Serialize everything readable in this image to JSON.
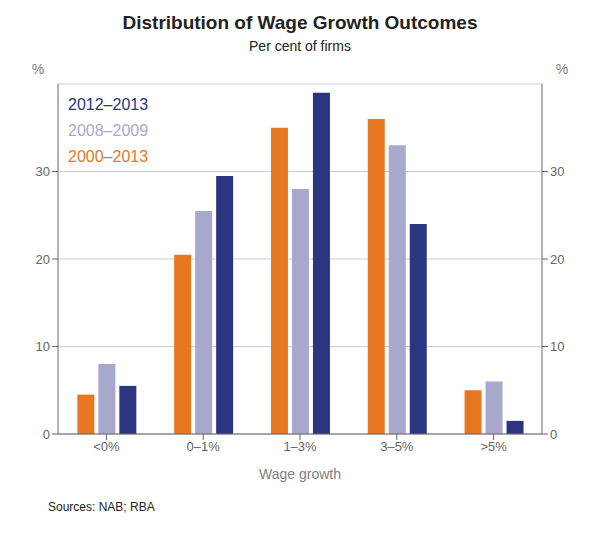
{
  "chart_data": {
    "type": "bar",
    "title": "Distribution of Wage Growth Outcomes",
    "subtitle": "Per cent of firms",
    "xlabel": "Wage growth",
    "ylabel": "%",
    "y2label": "%",
    "source": "Sources: NAB; RBA",
    "categories": [
      "<0%",
      "0–1%",
      "1–3%",
      "3–5%",
      ">5%"
    ],
    "series": [
      {
        "name": "2000–2013",
        "color": "#E87722",
        "values": [
          4.5,
          20.5,
          35.0,
          36.0,
          5.0
        ]
      },
      {
        "name": "2008–2009",
        "color": "#A8A8CC",
        "values": [
          8.0,
          25.5,
          28.0,
          33.0,
          6.0
        ]
      },
      {
        "name": "2012–2013",
        "color": "#2B3580",
        "values": [
          5.5,
          29.5,
          39.0,
          24.0,
          1.5
        ]
      }
    ],
    "ylim": [
      0,
      40
    ],
    "yticks": [
      0,
      10,
      20,
      30
    ],
    "y2lim": [
      0,
      40
    ],
    "y2ticks": [
      0,
      10,
      20,
      30
    ],
    "grid": true,
    "legend": "upper left"
  }
}
